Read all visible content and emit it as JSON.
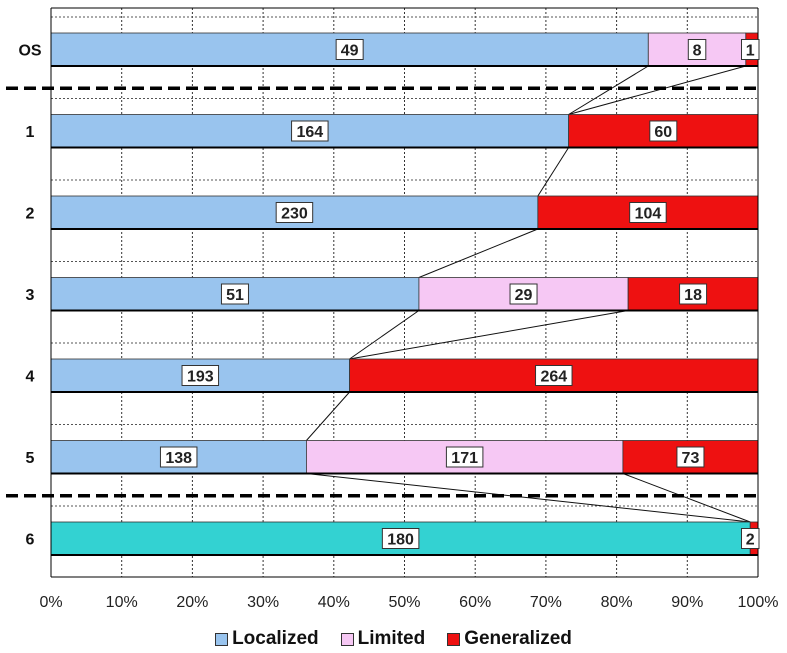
{
  "chart_data": {
    "type": "bar",
    "stacked": "percent",
    "orientation": "horizontal",
    "categories": [
      "OS",
      "1",
      "2",
      "3",
      "4",
      "5",
      "6"
    ],
    "series": [
      {
        "name": "Localized",
        "color": "#99C4EE",
        "values": [
          49,
          164,
          230,
          51,
          193,
          138,
          null
        ]
      },
      {
        "name": "Limited",
        "color": "#F6C8F4",
        "values": [
          8,
          null,
          null,
          29,
          null,
          171,
          null
        ]
      },
      {
        "name": "Generalized",
        "color": "#EE1111",
        "values": [
          1,
          60,
          104,
          18,
          264,
          73,
          null
        ]
      }
    ],
    "extra_bars": [
      {
        "category": "6",
        "segments": [
          {
            "value": 180,
            "color": "#33D2D2"
          },
          {
            "value": 2,
            "color": "#EE1111"
          }
        ]
      }
    ],
    "xlim": [
      0,
      100
    ],
    "xticks": [
      "0%",
      "10%",
      "20%",
      "30%",
      "40%",
      "50%",
      "60%",
      "70%",
      "80%",
      "90%",
      "100%"
    ],
    "grid": "dotted",
    "legend_position": "bottom",
    "separators_after": [
      "OS",
      "5"
    ]
  }
}
